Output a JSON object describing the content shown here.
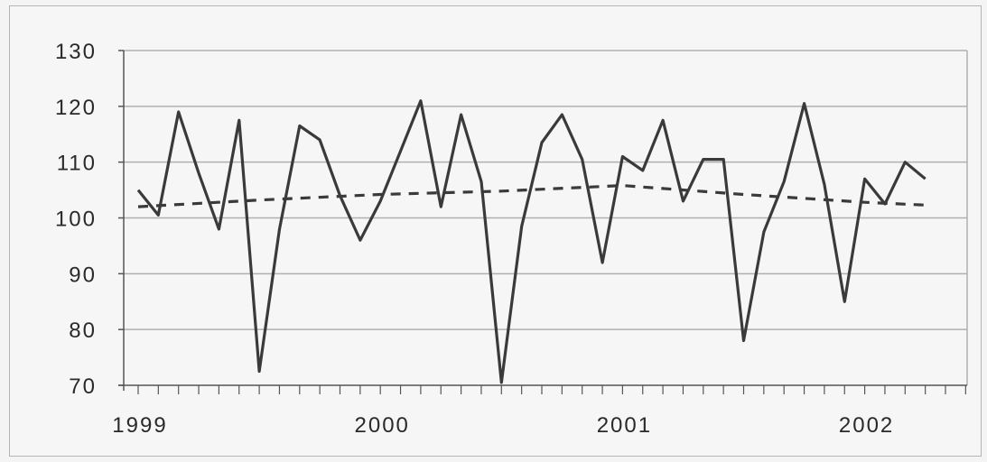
{
  "chart_data": {
    "type": "line",
    "ylim": [
      70,
      130
    ],
    "yticks": [
      "130",
      "120",
      "110",
      "100",
      "90",
      "80",
      "70"
    ],
    "xticks": [
      "1999",
      "2000",
      "2001",
      "2002"
    ],
    "grid": "horizontal",
    "colors": {
      "series": "#3a3a3a",
      "trend": "#3a3a3a",
      "grid": "#b0b0b0",
      "axis": "#555555"
    },
    "series": [
      {
        "style": "solid",
        "x": [
          "1999-01",
          "1999-02",
          "1999-03",
          "1999-04",
          "1999-05",
          "1999-06",
          "1999-07",
          "1999-08",
          "1999-09",
          "1999-10",
          "1999-11",
          "1999-12",
          "2000-01",
          "2000-02",
          "2000-03",
          "2000-04",
          "2000-05",
          "2000-06",
          "2000-07",
          "2000-08",
          "2000-09",
          "2000-10",
          "2000-11",
          "2000-12",
          "2001-01",
          "2001-02",
          "2001-03",
          "2001-04",
          "2001-05",
          "2001-06",
          "2001-07",
          "2001-08",
          "2001-09",
          "2001-10",
          "2001-11",
          "2001-12",
          "2002-01",
          "2002-02",
          "2002-03",
          "2002-04"
        ],
        "values": [
          105,
          100.5,
          119,
          108,
          98,
          117.5,
          72.5,
          98,
          116.5,
          114,
          104,
          96,
          103,
          112,
          121,
          102,
          118.5,
          106.5,
          70.5,
          98.5,
          113.5,
          118.5,
          110.5,
          92,
          111,
          108.5,
          117.5,
          103,
          110.5,
          110.5,
          78,
          97.5,
          106.5,
          120.5,
          106,
          85,
          107,
          102.5,
          110,
          107
        ]
      },
      {
        "style": "dashed",
        "x": [
          "1999-01",
          "1999-07",
          "2000-01",
          "2000-07",
          "2001-01",
          "2001-07",
          "2002-01",
          "2002-04"
        ],
        "values": [
          102,
          103.2,
          104.2,
          104.8,
          105.8,
          104.2,
          102.8,
          102.3
        ]
      }
    ]
  }
}
